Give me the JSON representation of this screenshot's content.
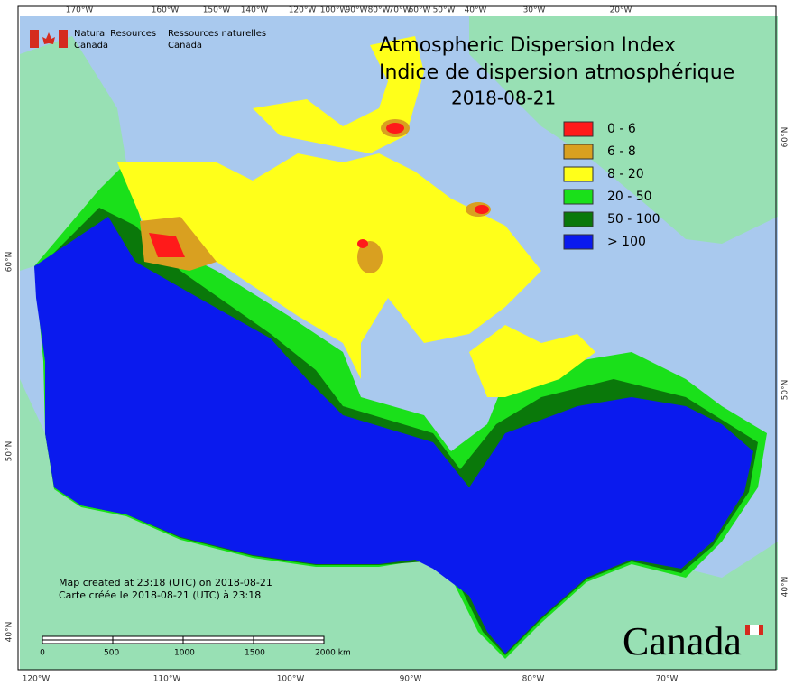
{
  "agency": {
    "en": "Natural Resources",
    "en2": "Canada",
    "fr": "Ressources naturelles",
    "fr2": "Canada"
  },
  "title": {
    "en": "Atmospheric Dispersion Index",
    "fr": "Indice de dispersion atmosphérique",
    "date": "2018-08-21"
  },
  "legend": [
    {
      "label": "0 - 6",
      "color": "#ff1a1a"
    },
    {
      "label": "6 - 8",
      "color": "#d9a020"
    },
    {
      "label": "8 - 20",
      "color": "#ffff1a"
    },
    {
      "label": "20 - 50",
      "color": "#1ae01a"
    },
    {
      "label": "50 - 100",
      "color": "#0a780a"
    },
    {
      "label": "> 100",
      "color": "#0a1aee"
    }
  ],
  "notes": [
    "Map created at 23:18 (UTC) on 2018-08-21",
    "Carte créée le 2018-08-21 (UTC) à 23:18"
  ],
  "graticule": {
    "top": [
      "170°W",
      "160°W",
      "150°W",
      "140°W",
      "120°W",
      "100°W",
      "90°W",
      "80°W",
      "70°W",
      "60°W",
      "50°W",
      "40°W",
      "30°W",
      "20°W"
    ],
    "bottom": [
      "120°W",
      "110°W",
      "100°W",
      "90°W",
      "80°W",
      "70°W"
    ],
    "left": [
      "60°N",
      "50°N",
      "40°N"
    ],
    "right": [
      "60°N",
      "50°N",
      "40°N"
    ]
  },
  "scale_bar": [
    "0",
    "500",
    "1000",
    "1500",
    "2000 km"
  ],
  "wordmark": "Canada"
}
